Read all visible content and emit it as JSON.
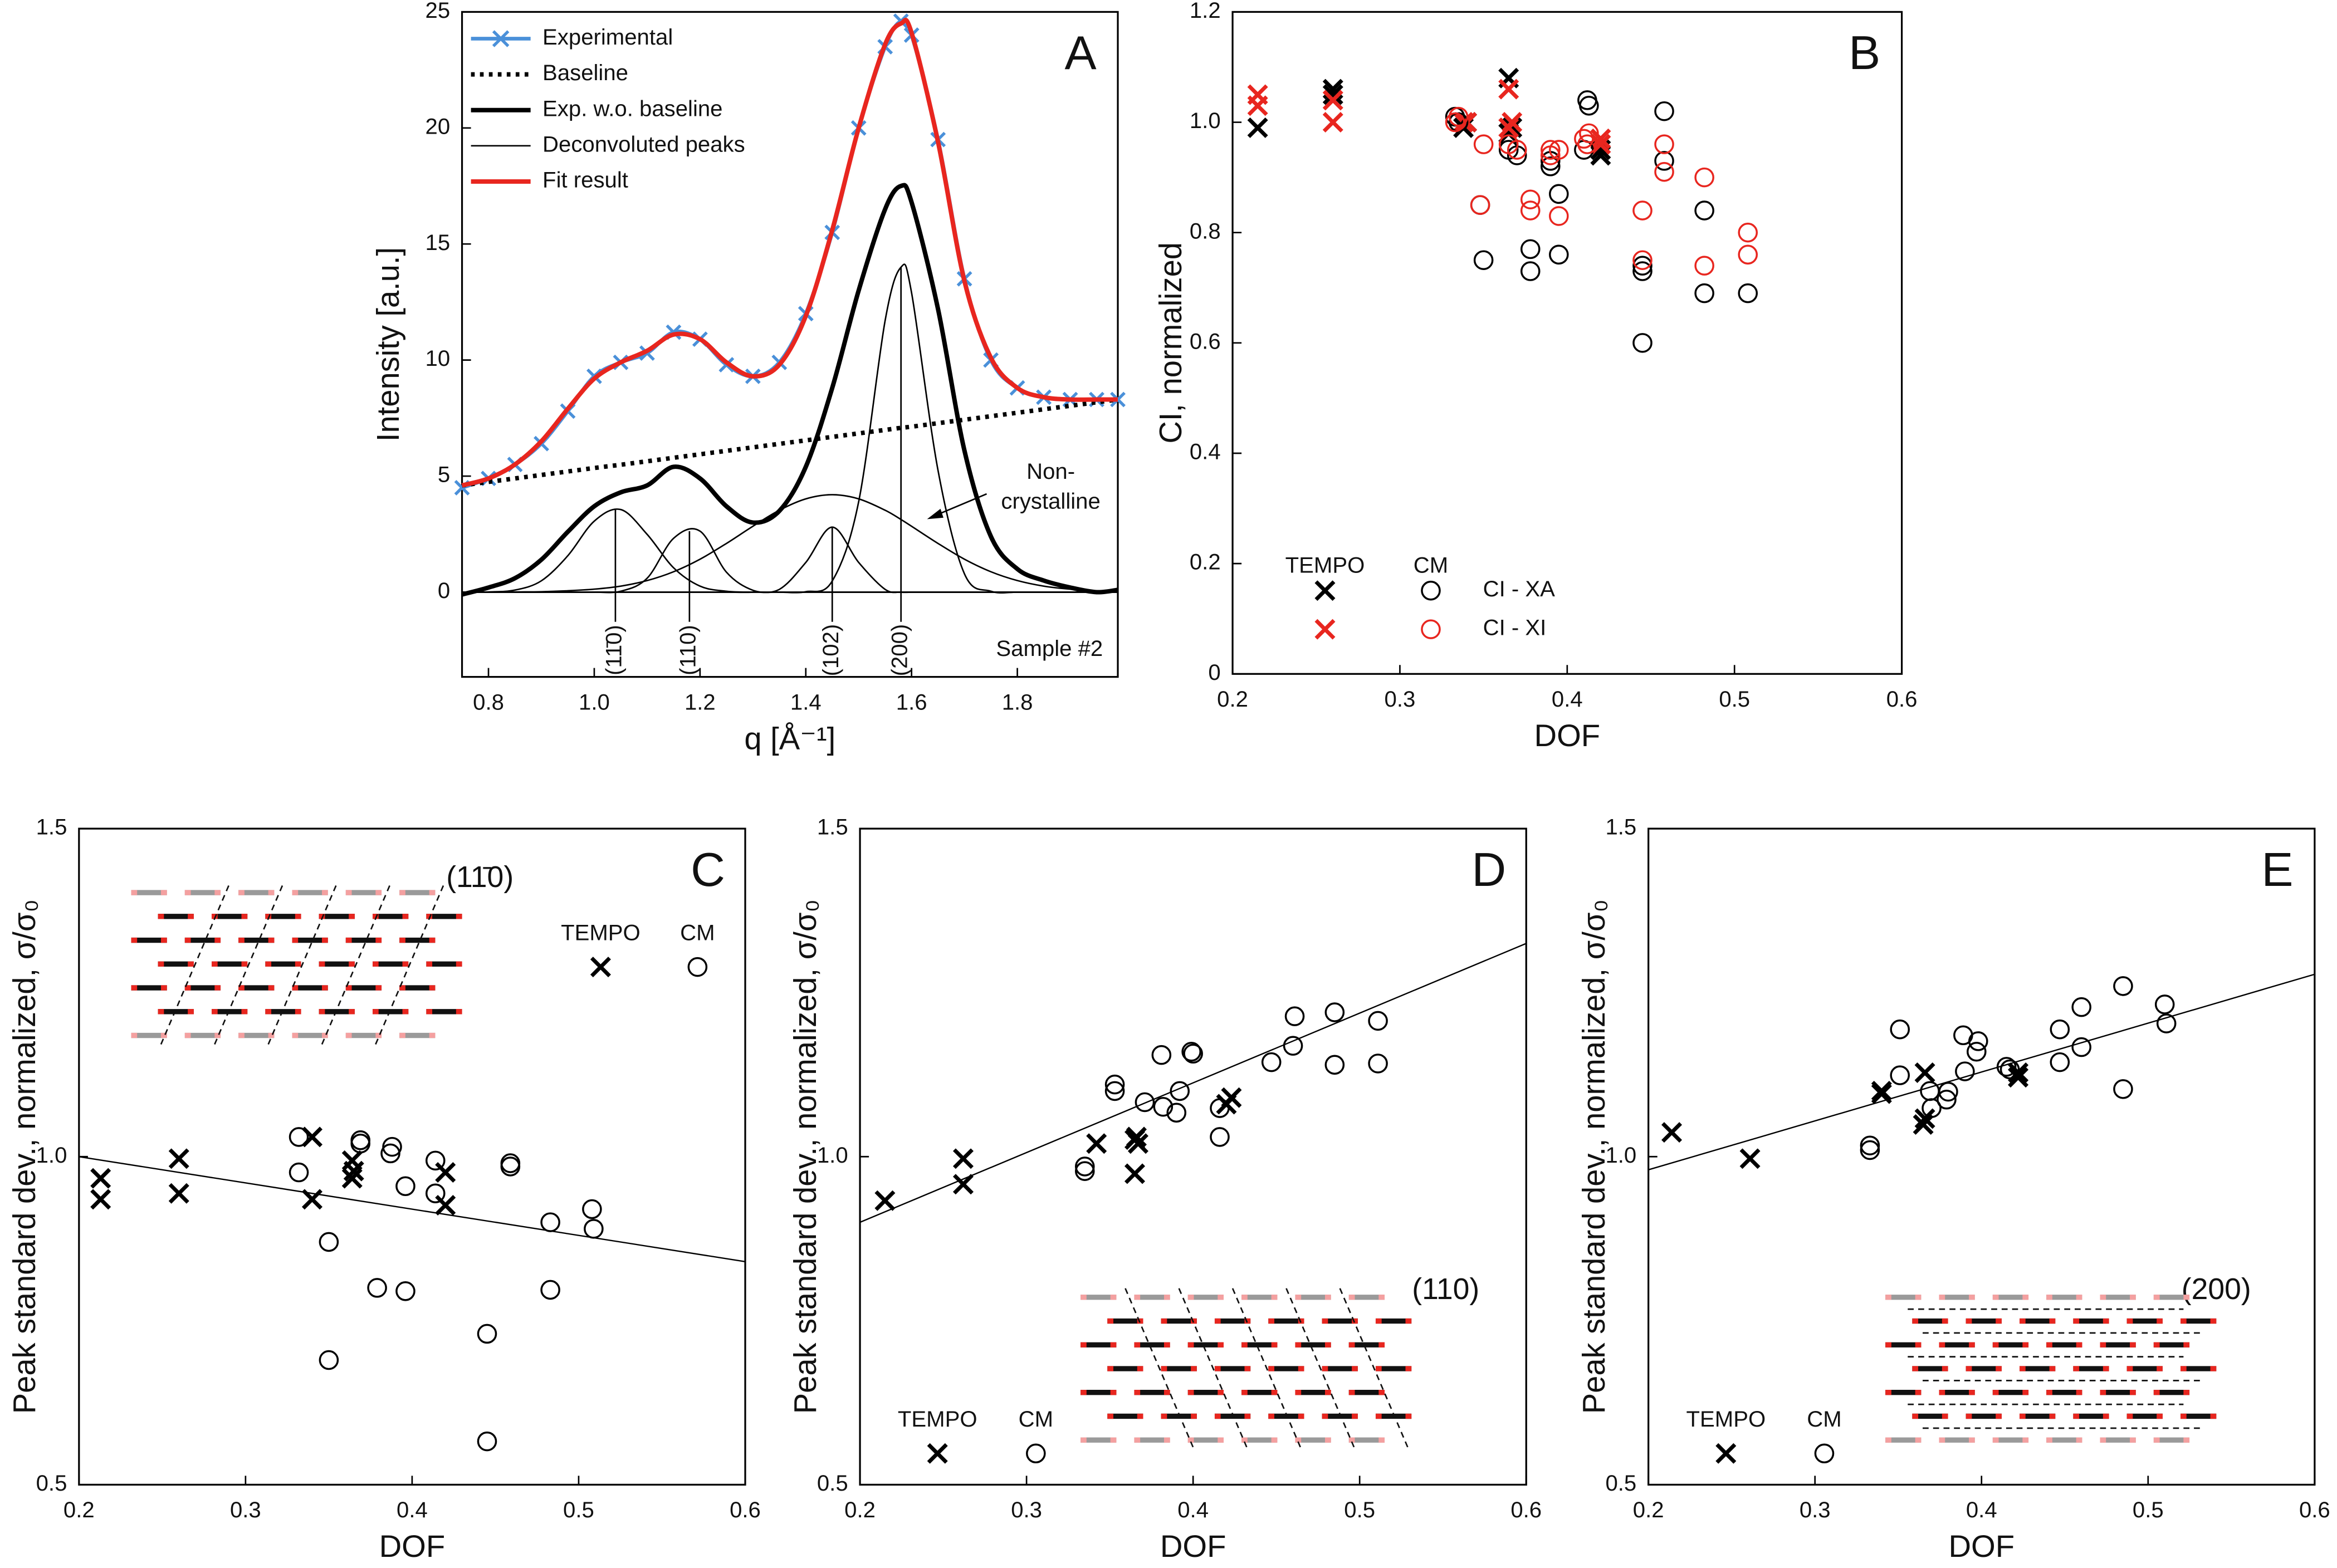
{
  "chart_data": [
    {
      "type": "line",
      "label": "A",
      "xlabel": "q [Å⁻¹]",
      "ylabel": "Intensity [a.u.]",
      "note": "Sample #2",
      "annotation": [
        "Non-",
        "crystalline"
      ],
      "legend": "upper left",
      "x": [
        0.75,
        0.8,
        0.85,
        0.9,
        0.95,
        1.0,
        1.05,
        1.1,
        1.15,
        1.2,
        1.25,
        1.3,
        1.35,
        1.4,
        1.45,
        1.5,
        1.55,
        1.58,
        1.6,
        1.65,
        1.7,
        1.75,
        1.8,
        1.85,
        1.9,
        1.95,
        1.99
      ],
      "xlim": [
        0.75,
        1.99
      ],
      "ylim": [
        -3.65,
        25
      ],
      "xticks": [
        0.8,
        {
          "value": 1,
          "label": "1.0"
        },
        1.2,
        1.4,
        1.6,
        1.8
      ],
      "yticks": [
        0,
        5,
        10,
        15,
        20,
        25
      ],
      "series": [
        {
          "name": "Experimental",
          "color": "#4a90d9",
          "style": "solid",
          "width": 2.5,
          "marker": "x",
          "values": [
            4.5,
            4.9,
            5.5,
            6.4,
            7.8,
            9.3,
            9.9,
            10.3,
            11.2,
            10.9,
            9.8,
            9.3,
            9.9,
            12.0,
            15.5,
            20.0,
            23.5,
            24.6,
            24.0,
            19.5,
            13.5,
            10.0,
            8.8,
            8.4,
            8.3,
            8.3,
            8.3
          ]
        },
        {
          "name": "Baseline",
          "color": "#000000",
          "style": "dotted",
          "width": 3,
          "values": [
            4.6,
            4.75,
            4.9,
            5.05,
            5.2,
            5.35,
            5.49,
            5.64,
            5.79,
            5.94,
            6.09,
            6.24,
            6.39,
            6.54,
            6.69,
            6.84,
            6.99,
            7.08,
            7.13,
            7.28,
            7.43,
            7.58,
            7.73,
            7.88,
            8.03,
            8.18,
            8.3
          ]
        },
        {
          "name": "Exp. w.o. baseline",
          "color": "#000000",
          "style": "solid",
          "width": 3,
          "values": [
            -0.1,
            0.2,
            0.6,
            1.4,
            2.6,
            3.7,
            4.3,
            4.6,
            5.4,
            4.9,
            3.7,
            3.0,
            3.5,
            5.4,
            8.8,
            13.0,
            16.5,
            17.5,
            16.8,
            12.2,
            6.1,
            2.4,
            1.0,
            0.5,
            0.2,
            0,
            0.1
          ]
        },
        {
          "name": "Deconvoluted peaks",
          "color": "#000000",
          "style": "solid",
          "width": 1,
          "curves": [
            [
              0,
              0.01,
              0.09,
              0.49,
              1.57,
              3.06,
              3.56,
              2.49,
              1.05,
              0.26,
              0.04,
              0,
              0,
              0,
              0,
              0,
              0,
              0,
              0,
              0,
              0,
              0,
              0,
              0,
              0,
              0,
              0
            ],
            [
              0,
              0,
              0,
              0,
              0,
              0,
              0.04,
              0.6,
              2.32,
              2.63,
              0.86,
              0.08,
              0,
              0,
              0,
              0,
              0,
              0,
              0,
              0,
              0,
              0,
              0,
              0,
              0,
              0,
              0
            ],
            [
              0,
              0,
              0,
              0,
              0,
              0,
              0,
              0,
              0,
              0,
              0,
              0,
              0.12,
              1.28,
              2.8,
              1.28,
              0.12,
              0,
              0,
              0,
              0,
              0,
              0,
              0,
              0,
              0,
              0
            ],
            [
              0,
              0,
              0,
              0,
              0,
              0,
              0,
              0,
              0,
              0,
              0,
              0,
              0,
              0.02,
              0.48,
              3.9,
              11.7,
              14,
              12.9,
              5.25,
              0.79,
              0.04,
              0,
              0,
              0,
              0,
              0
            ],
            [
              0,
              0,
              0.01,
              0.02,
              0.06,
              0.13,
              0.26,
              0.5,
              0.88,
              1.42,
              2.1,
              2.84,
              3.53,
              4.02,
              4.2,
              4.02,
              3.53,
              3.13,
              2.84,
              2.1,
              1.42,
              0.88,
              0.5,
              0.26,
              0.13,
              0.06,
              0.03
            ]
          ]
        },
        {
          "name": "Fit result",
          "color": "#e8261f",
          "style": "solid",
          "width": 3,
          "values": [
            4.6,
            4.9,
            5.5,
            6.5,
            7.9,
            9.2,
            9.9,
            10.4,
            11.1,
            10.9,
            9.9,
            9.3,
            9.8,
            11.9,
            15.6,
            20.0,
            23.6,
            24.5,
            24.1,
            19.4,
            13.4,
            10.1,
            8.8,
            8.4,
            8.3,
            8.3,
            8.3
          ]
        }
      ],
      "peak_labels": [
        {
          "label": "(11̄0)",
          "q": 1.04
        },
        {
          "label": "(110)",
          "q": 1.18
        },
        {
          "label": "(102)",
          "q": 1.45
        },
        {
          "label": "(200)",
          "q": 1.58
        }
      ]
    },
    {
      "type": "scatter",
      "label": "B",
      "xlabel": "DOF",
      "ylabel": "CI, normalized",
      "xlim": [
        0.2,
        0.6
      ],
      "ylim": [
        0,
        1.2
      ],
      "xticks": [
        0.2,
        0.3,
        0.4,
        0.5,
        0.6
      ],
      "yticks": [
        0,
        0.2,
        0.4,
        0.6,
        0.8,
        {
          "value": 1,
          "label": "1.0"
        },
        1.2
      ],
      "legend": {
        "position": "lower left",
        "groups": [
          {
            "name": "TEMPO",
            "marker": "x"
          },
          {
            "name": "CM",
            "marker": "o"
          }
        ],
        "labels": [
          "CI - XA",
          "CI - XI"
        ]
      },
      "series": [
        {
          "group": 0,
          "label": 0,
          "color": "#000000",
          "x": [
            0.215,
            0.26,
            0.26,
            0.338,
            0.34,
            0.365,
            0.365,
            0.367,
            0.42,
            0.42
          ],
          "values": [
            0.99,
            1.06,
            1.05,
            0.99,
            1.0,
            1.08,
            0.98,
            0.99,
            0.94,
            0.95
          ]
        },
        {
          "group": 0,
          "label": 1,
          "color": "#e8261f",
          "x": [
            0.215,
            0.215,
            0.26,
            0.26,
            0.338,
            0.34,
            0.365,
            0.365,
            0.367,
            0.42,
            0.42
          ],
          "values": [
            1.05,
            1.03,
            1.04,
            1.0,
            1.0,
            1.0,
            1.06,
            0.99,
            1.0,
            0.97,
            0.96
          ]
        },
        {
          "group": 1,
          "label": 0,
          "color": "#000000",
          "x": [
            0.333,
            0.335,
            0.348,
            0.35,
            0.365,
            0.37,
            0.378,
            0.378,
            0.39,
            0.39,
            0.395,
            0.395,
            0.41,
            0.412,
            0.413,
            0.445,
            0.445,
            0.445,
            0.458,
            0.458,
            0.482,
            0.482,
            0.508
          ],
          "values": [
            1.01,
            1.0,
            0.85,
            0.75,
            0.95,
            0.94,
            0.77,
            0.73,
            0.93,
            0.92,
            0.87,
            0.76,
            0.95,
            1.04,
            1.03,
            0.74,
            0.73,
            0.6,
            1.02,
            0.93,
            0.84,
            0.69,
            0.69
          ]
        },
        {
          "group": 1,
          "label": 1,
          "color": "#e8261f",
          "x": [
            0.333,
            0.335,
            0.348,
            0.35,
            0.365,
            0.37,
            0.378,
            0.378,
            0.39,
            0.39,
            0.395,
            0.395,
            0.41,
            0.412,
            0.413,
            0.445,
            0.445,
            0.458,
            0.458,
            0.482,
            0.482,
            0.508,
            0.508
          ],
          "values": [
            1.0,
            1.01,
            0.85,
            0.96,
            0.96,
            0.95,
            0.86,
            0.84,
            0.94,
            0.95,
            0.83,
            0.95,
            0.97,
            0.96,
            0.98,
            0.84,
            0.75,
            0.96,
            0.91,
            0.9,
            0.74,
            0.8,
            0.76
          ]
        }
      ]
    },
    {
      "type": "scatter",
      "label": "C",
      "plane": "(11̄0)",
      "xlabel": "DOF",
      "ylabel": "Peak standard dev., normalized, σ/σ₀",
      "legend": "upper right",
      "xlim": [
        0.2,
        0.6
      ],
      "ylim": [
        0.5,
        1.5
      ],
      "xticks": [
        0.2,
        0.3,
        0.4,
        0.5,
        0.6
      ],
      "yticks": [
        0.5,
        {
          "value": 1,
          "label": "1.0"
        },
        1.5
      ],
      "series": [
        {
          "name": "TEMPO",
          "marker": "x",
          "color": "#000000",
          "x": [
            0.213,
            0.213,
            0.26,
            0.26,
            0.34,
            0.34,
            0.364,
            0.365,
            0.364,
            0.42,
            0.42
          ],
          "values": [
            0.967,
            0.935,
            0.997,
            0.944,
            1.03,
            0.935,
            0.994,
            0.978,
            0.967,
            0.976,
            0.926
          ]
        },
        {
          "name": "CM",
          "marker": "o",
          "color": "#000000",
          "x": [
            0.332,
            0.332,
            0.35,
            0.35,
            0.369,
            0.369,
            0.379,
            0.387,
            0.388,
            0.396,
            0.396,
            0.414,
            0.414,
            0.459,
            0.459,
            0.445,
            0.445,
            0.483,
            0.483,
            0.508,
            0.509
          ],
          "values": [
            0.976,
            1.03,
            0.87,
            0.69,
            1.02,
            1.025,
            0.8,
            1.005,
            1.015,
            0.955,
            0.795,
            0.994,
            0.944,
            0.985,
            0.99,
            0.73,
            0.566,
            0.9,
            0.797,
            0.92,
            0.89
          ]
        }
      ],
      "fit": {
        "x": [
          0.2,
          0.6
        ],
        "values": [
          1.0,
          0.84
        ]
      }
    },
    {
      "type": "scatter",
      "label": "D",
      "plane": "(110)",
      "xlabel": "DOF",
      "ylabel": "Peak standard dev., normalized, σ/σ₀",
      "legend": "lower left",
      "xlim": [
        0.2,
        0.6
      ],
      "ylim": [
        0.5,
        1.5
      ],
      "xticks": [
        0.2,
        0.3,
        0.4,
        0.5,
        0.6
      ],
      "yticks": [
        0.5,
        {
          "value": 1,
          "label": "1.0"
        },
        1.5
      ],
      "series": [
        {
          "name": "TEMPO",
          "marker": "x",
          "color": "#000000",
          "x": [
            0.215,
            0.262,
            0.262,
            0.342,
            0.365,
            0.367,
            0.366,
            0.365,
            0.42,
            0.423
          ],
          "values": [
            0.933,
            0.997,
            0.958,
            1.02,
            1.026,
            1.02,
            1.03,
            0.974,
            1.08,
            1.09
          ]
        },
        {
          "name": "CM",
          "marker": "o",
          "color": "#000000",
          "x": [
            0.335,
            0.335,
            0.353,
            0.353,
            0.371,
            0.382,
            0.381,
            0.39,
            0.392,
            0.399,
            0.4,
            0.416,
            0.416,
            0.447,
            0.46,
            0.461,
            0.485,
            0.485,
            0.511,
            0.511
          ],
          "values": [
            0.978,
            0.985,
            1.11,
            1.1,
            1.083,
            1.076,
            1.155,
            1.067,
            1.1,
            1.16,
            1.157,
            1.03,
            1.074,
            1.144,
            1.169,
            1.214,
            1.14,
            1.22,
            1.207,
            1.142
          ]
        }
      ],
      "fit": {
        "x": [
          0.2,
          0.6
        ],
        "values": [
          0.9,
          1.325
        ]
      }
    },
    {
      "type": "scatter",
      "label": "E",
      "plane": "(200)",
      "xlabel": "DOF",
      "ylabel": "Peak standard dev., normalized, σ/σ₀",
      "legend": "lower left",
      "xlim": [
        0.2,
        0.6
      ],
      "ylim": [
        0.5,
        1.5
      ],
      "xticks": [
        0.2,
        0.3,
        0.4,
        0.5,
        0.6
      ],
      "yticks": [
        0.5,
        {
          "value": 1,
          "label": "1.0"
        },
        1.5
      ],
      "series": [
        {
          "name": "TEMPO",
          "marker": "x",
          "color": "#000000",
          "x": [
            0.214,
            0.261,
            0.34,
            0.34,
            0.366,
            0.365,
            0.366,
            0.422,
            0.422
          ],
          "values": [
            1.037,
            0.997,
            1.096,
            1.1,
            1.128,
            1.049,
            1.058,
            1.128,
            1.121
          ]
        },
        {
          "name": "CM",
          "marker": "o",
          "color": "#000000",
          "x": [
            0.333,
            0.333,
            0.351,
            0.351,
            0.369,
            0.37,
            0.379,
            0.38,
            0.389,
            0.398,
            0.397,
            0.39,
            0.415,
            0.417,
            0.447,
            0.447,
            0.46,
            0.46,
            0.485,
            0.485,
            0.51,
            0.511
          ],
          "values": [
            1.01,
            1.017,
            1.194,
            1.124,
            1.1,
            1.074,
            1.087,
            1.099,
            1.185,
            1.176,
            1.16,
            1.13,
            1.137,
            1.133,
            1.194,
            1.144,
            1.228,
            1.167,
            1.26,
            1.103,
            1.232,
            1.203
          ]
        }
      ],
      "fit": {
        "x": [
          0.2,
          0.6
        ],
        "values": [
          0.98,
          1.278
        ]
      }
    }
  ]
}
